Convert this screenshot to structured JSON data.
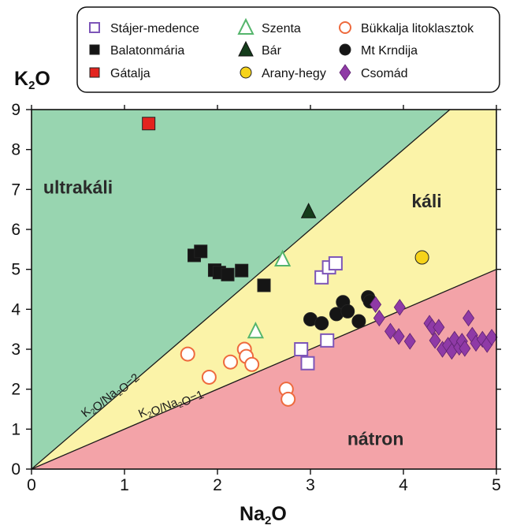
{
  "chart_data": {
    "type": "scatter",
    "xlabel": "Na2O",
    "ylabel": "K2O",
    "xlim": [
      0,
      5
    ],
    "ylim": [
      0,
      9
    ],
    "xticks": [
      "0",
      "1",
      "2",
      "3",
      "4",
      "5"
    ],
    "yticks": [
      "0",
      "1",
      "2",
      "3",
      "4",
      "5",
      "6",
      "7",
      "8",
      "9"
    ],
    "grid": false,
    "legend_position": "top",
    "fields": [
      {
        "key": "ultra",
        "label": "ultrakáli",
        "color": "#98d5b0",
        "label_pos": [
          0.5,
          6.9
        ]
      },
      {
        "key": "kali",
        "label": "káli",
        "color": "#fbf3a8",
        "label_pos": [
          4.25,
          6.55
        ]
      },
      {
        "key": "natron",
        "label": "nátron",
        "color": "#f3a3a8",
        "label_pos": [
          3.7,
          0.6
        ]
      }
    ],
    "boundaries": [
      {
        "name": "K2O/Na2O=2",
        "slope": 2,
        "label_base": "K",
        "label_sub1": "2",
        "label_mid": "O/Na",
        "label_sub2": "2",
        "label_end": "O=2"
      },
      {
        "name": "K2O/Na2O=1",
        "slope": 1,
        "label_base": "K",
        "label_sub1": "2",
        "label_mid": "O/Na",
        "label_sub2": "2",
        "label_end": "O=1"
      }
    ],
    "series": [
      {
        "name": "Stájer-medence",
        "marker": "square-open",
        "color": "#7d55b8",
        "points": [
          [
            2.9,
            3.0
          ],
          [
            2.97,
            2.65
          ],
          [
            3.18,
            3.22
          ],
          [
            3.12,
            4.8
          ],
          [
            3.2,
            5.05
          ],
          [
            3.27,
            5.15
          ]
        ]
      },
      {
        "name": "Balatonmária",
        "marker": "square",
        "color": "#151515",
        "points": [
          [
            1.75,
            5.35
          ],
          [
            1.82,
            5.45
          ],
          [
            1.97,
            4.98
          ],
          [
            2.02,
            4.92
          ],
          [
            2.11,
            4.87
          ],
          [
            2.26,
            4.97
          ],
          [
            2.5,
            4.6
          ]
        ]
      },
      {
        "name": "Gátalja",
        "marker": "square",
        "color": "#e3241f",
        "points": [
          [
            1.26,
            8.65
          ]
        ]
      },
      {
        "name": "Szenta",
        "marker": "triangle-open",
        "color": "#55b56c",
        "points": [
          [
            2.41,
            3.45
          ],
          [
            2.7,
            5.25
          ]
        ]
      },
      {
        "name": "Bár",
        "marker": "triangle",
        "color": "#153d1c",
        "points": [
          [
            2.98,
            6.45
          ]
        ]
      },
      {
        "name": "Arany-hegy",
        "marker": "circle",
        "color": "#f6d31a",
        "points": [
          [
            4.2,
            5.3
          ]
        ]
      },
      {
        "name": "Bükkalja litoklasztok",
        "marker": "circle-open",
        "color": "#ee6a3d",
        "points": [
          [
            1.68,
            2.88
          ],
          [
            1.91,
            2.3
          ],
          [
            2.14,
            2.68
          ],
          [
            2.29,
            3.0
          ],
          [
            2.31,
            2.82
          ],
          [
            2.37,
            2.62
          ],
          [
            2.74,
            2.0
          ],
          [
            2.76,
            1.75
          ]
        ]
      },
      {
        "name": "Mt Krndija",
        "marker": "circle",
        "color": "#151515",
        "points": [
          [
            3.0,
            3.75
          ],
          [
            3.12,
            3.65
          ],
          [
            3.28,
            3.88
          ],
          [
            3.35,
            4.18
          ],
          [
            3.4,
            3.95
          ],
          [
            3.52,
            3.7
          ],
          [
            3.62,
            4.3
          ],
          [
            3.64,
            4.2
          ]
        ]
      },
      {
        "name": "Csomád",
        "marker": "diamond",
        "color": "#8f3aa6",
        "points": [
          [
            3.7,
            4.12
          ],
          [
            3.74,
            3.78
          ],
          [
            3.86,
            3.45
          ],
          [
            3.95,
            3.32
          ],
          [
            4.07,
            3.2
          ],
          [
            3.96,
            4.05
          ],
          [
            4.28,
            3.65
          ],
          [
            4.31,
            3.55
          ],
          [
            4.34,
            3.22
          ],
          [
            4.38,
            3.55
          ],
          [
            4.42,
            3.0
          ],
          [
            4.48,
            3.1
          ],
          [
            4.52,
            2.95
          ],
          [
            4.55,
            3.25
          ],
          [
            4.6,
            3.05
          ],
          [
            4.63,
            3.2
          ],
          [
            4.66,
            3.02
          ],
          [
            4.7,
            3.78
          ],
          [
            4.74,
            3.35
          ],
          [
            4.78,
            3.15
          ],
          [
            4.85,
            3.25
          ],
          [
            4.9,
            3.12
          ],
          [
            4.95,
            3.3
          ]
        ]
      }
    ]
  }
}
